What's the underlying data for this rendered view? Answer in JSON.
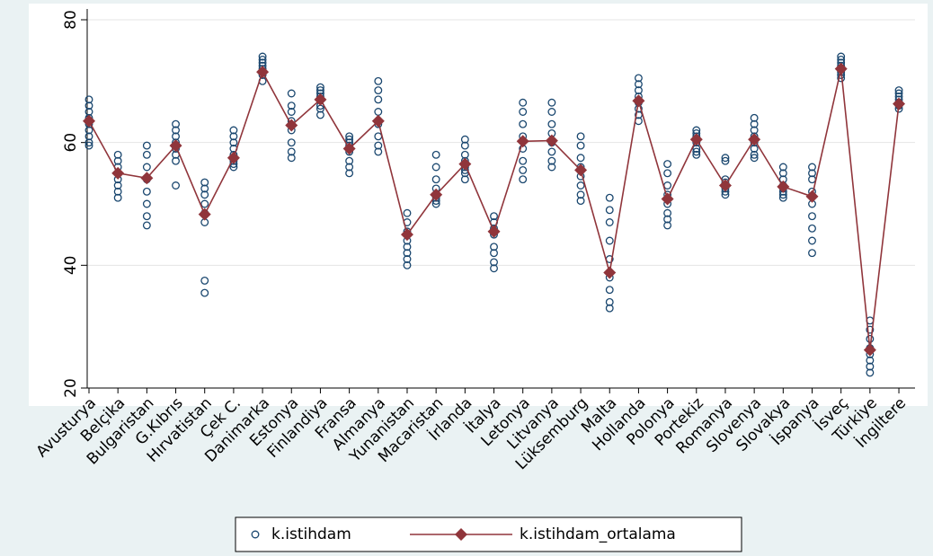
{
  "chart_data": {
    "type": "scatter-line",
    "categories": [
      "Avusturya",
      "Belçika",
      "Bulgaristan",
      "G.Kıbrıs",
      "Hırvatistan",
      "Çek C.",
      "Danimarka",
      "Estonya",
      "Finlandiya",
      "Fransa",
      "Almanya",
      "Yunanistan",
      "Macaristan",
      "İrlanda",
      "İtalya",
      "Letonya",
      "Litvanya",
      "Lüksemburg",
      "Malta",
      "Hollanda",
      "Polonya",
      "Portekiz",
      "Romanya",
      "Slovenya",
      "Slovakya",
      "İspanya",
      "İsveç",
      "Türkiye",
      "İngiltere"
    ],
    "series": [
      {
        "name": "k.istihdam",
        "color": "#1a476f",
        "values": [
          [
            59.5,
            60,
            61,
            62,
            63,
            64,
            65,
            66,
            67
          ],
          [
            51,
            52,
            53,
            54,
            55,
            56,
            57,
            58
          ],
          [
            46.5,
            48,
            50,
            52,
            54,
            56,
            58,
            59.5
          ],
          [
            53,
            57,
            58,
            59,
            60,
            61,
            62,
            63
          ],
          [
            35.5,
            37.5,
            47,
            48.5,
            50,
            51.5,
            52.5,
            53.5
          ],
          [
            56,
            56.5,
            57,
            58,
            59,
            60,
            61,
            62
          ],
          [
            70,
            71,
            71.5,
            72,
            72.5,
            73,
            73.5,
            74
          ],
          [
            57.5,
            58.5,
            60,
            62,
            63.5,
            65,
            66,
            68
          ],
          [
            64.5,
            65.5,
            66,
            67,
            67.5,
            68,
            68.5,
            69
          ],
          [
            55,
            56,
            57,
            58.5,
            59.5,
            60,
            60.5,
            61
          ],
          [
            58.5,
            59.5,
            61,
            63,
            65,
            67,
            68.5,
            70
          ],
          [
            40,
            41,
            42,
            43,
            44,
            45.5,
            47,
            48.5
          ],
          [
            50,
            50.5,
            51,
            51.5,
            52.5,
            54,
            56,
            58
          ],
          [
            54,
            55,
            55.5,
            56,
            57,
            58,
            59.5,
            60.5
          ],
          [
            39.5,
            40.5,
            42,
            43,
            45,
            46,
            47,
            48
          ],
          [
            54,
            55.5,
            57,
            59,
            61,
            63,
            65,
            66.5
          ],
          [
            56,
            57,
            58.5,
            60,
            61.5,
            63,
            65,
            66.5
          ],
          [
            50.5,
            51.5,
            53,
            54.5,
            56,
            57.5,
            59.5,
            61
          ],
          [
            33,
            34,
            36,
            38,
            41,
            44,
            47,
            49,
            51
          ],
          [
            63.5,
            64.5,
            65.5,
            66.5,
            67.5,
            68.5,
            69.5,
            70.5
          ],
          [
            46.5,
            47.5,
            48.5,
            50,
            51.5,
            53,
            55,
            56.5
          ],
          [
            58,
            58.5,
            59,
            60,
            61,
            61.5,
            62
          ],
          [
            51.5,
            52,
            52.5,
            53,
            53.5,
            54,
            57,
            57.5
          ],
          [
            57.5,
            58,
            59,
            60,
            61,
            62,
            63,
            64
          ],
          [
            51,
            51.5,
            52,
            52.5,
            53,
            54,
            55,
            56
          ],
          [
            42,
            44,
            46,
            48,
            50,
            52,
            54,
            55,
            56
          ],
          [
            70.5,
            71,
            71.5,
            72,
            72.5,
            73,
            73.5,
            74
          ],
          [
            22.5,
            23.5,
            24.5,
            25.5,
            26.5,
            28,
            29.5,
            31
          ],
          [
            65.5,
            66,
            66.5,
            67,
            67.5,
            68,
            68.5
          ]
        ]
      },
      {
        "name": "k.istihdam_ortalama",
        "color": "#90353b",
        "values": [
          63.5,
          55,
          54.2,
          59.5,
          48.3,
          57.5,
          71.5,
          62.8,
          67,
          59,
          63.5,
          45,
          51.5,
          56.5,
          45.5,
          60.2,
          60.3,
          55.5,
          38.8,
          66.8,
          50.8,
          60.5,
          53,
          60.5,
          52.8,
          51.2,
          72,
          26.2,
          66.3
        ]
      }
    ],
    "ylim": [
      20,
      80
    ],
    "yticks": [
      20,
      40,
      60,
      80
    ],
    "grid": true
  }
}
